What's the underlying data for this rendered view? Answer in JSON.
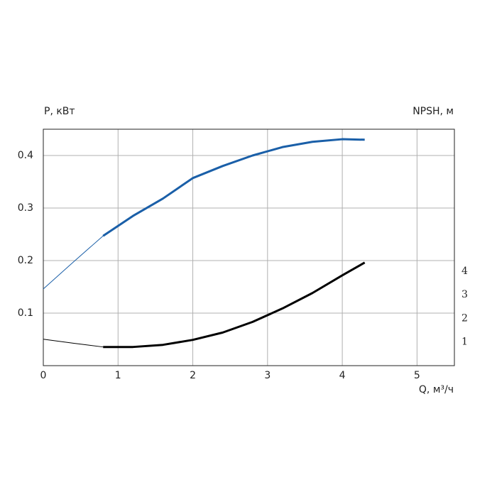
{
  "chart_data": {
    "type": "line",
    "ylabel": "P, кВт",
    "y2label": "NPSH, м",
    "xlabel": "Q, м³/ч",
    "xlim": [
      0,
      5.5
    ],
    "xticks": [
      0,
      1,
      2,
      3,
      4,
      5
    ],
    "ylim": [
      0,
      0.45
    ],
    "yticks": [
      0.1,
      0.2,
      0.3,
      0.4
    ],
    "y2lim": [
      0,
      10
    ],
    "y2ticks": [
      1,
      2,
      3,
      4
    ],
    "grid": true,
    "series": [
      {
        "color": "#1a5fa8",
        "line_width": 1,
        "x": [
          0,
          0.4,
          0.8
        ],
        "values": [
          0.146,
          0.197,
          0.247
        ]
      },
      {
        "color": "#1a5fa8",
        "line_width": 3,
        "x": [
          0.8,
          1.2,
          1.6,
          2,
          2.4,
          2.8,
          3.2,
          3.6,
          4,
          4.3
        ],
        "values": [
          0.247,
          0.285,
          0.318,
          0.357,
          0.38,
          0.4,
          0.416,
          0.426,
          0.431,
          0.43
        ]
      },
      {
        "color": "#000000",
        "line_width": 1,
        "axis": "y2",
        "x": [
          0,
          0.4,
          0.8
        ],
        "values": [
          1.12,
          0.95,
          0.79
        ]
      },
      {
        "color": "#000000",
        "line_width": 3,
        "axis": "y2",
        "x": [
          0.8,
          1.2,
          1.6,
          2,
          2.4,
          2.8,
          3.2,
          3.6,
          4,
          4.3
        ],
        "values": [
          0.79,
          0.79,
          0.88,
          1.09,
          1.4,
          1.85,
          2.42,
          3.07,
          3.82,
          4.36
        ]
      }
    ]
  }
}
